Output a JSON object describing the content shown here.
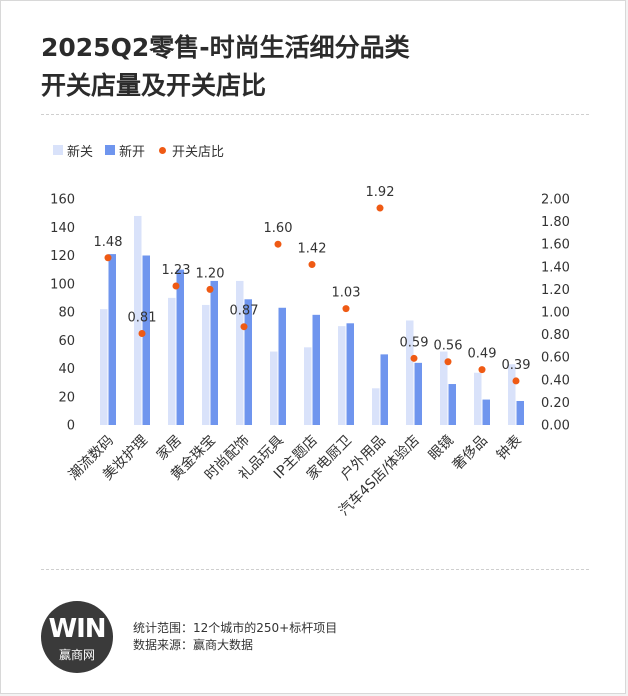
{
  "title": {
    "line1": "2025Q2零售-时尚生活细分品类",
    "line2": "开关店量及开关店比"
  },
  "legend": {
    "closed": "新关",
    "opened": "新开",
    "ratio": "开关店比"
  },
  "colors": {
    "closed": "#d9e2fa",
    "opened": "#6f95ee",
    "ratio": "#ef5a14"
  },
  "footer": {
    "line1": "统计范围：12个城市的250+标杆项目",
    "line2": "数据来源：赢商大数据"
  },
  "logo": {
    "mark": "WIN",
    "text": "赢商网"
  },
  "chart_data": {
    "type": "bar",
    "categories": [
      "潮流数码",
      "美妆护理",
      "家居",
      "黄金珠宝",
      "时尚配饰",
      "礼品玩具",
      "IP主题店",
      "家电厨卫",
      "户外用品",
      "汽车4S店/体验店",
      "眼镜",
      "奢侈品",
      "钟表"
    ],
    "series": [
      {
        "name": "新关",
        "type": "bar",
        "axis": "left",
        "values": [
          82,
          148,
          90,
          85,
          102,
          52,
          55,
          70,
          26,
          74,
          52,
          37,
          43
        ]
      },
      {
        "name": "新开",
        "type": "bar",
        "axis": "left",
        "values": [
          121,
          120,
          110,
          102,
          89,
          83,
          78,
          72,
          50,
          44,
          29,
          18,
          17
        ]
      },
      {
        "name": "开关店比",
        "type": "scatter",
        "axis": "right",
        "values": [
          1.48,
          0.81,
          1.23,
          1.2,
          0.87,
          1.6,
          1.42,
          1.03,
          1.92,
          0.59,
          0.56,
          0.49,
          0.39
        ]
      }
    ],
    "data_labels": [
      "1.48",
      "0.81",
      "1.23",
      "1.20",
      "0.87",
      "1.60",
      "1.42",
      "1.03",
      "1.92",
      "0.59",
      "0.56",
      "0.49",
      "0.39"
    ],
    "ylim_left": [
      0,
      160
    ],
    "ylim_right": [
      0,
      2.0
    ],
    "yticks_left": [
      "0",
      "20",
      "40",
      "60",
      "80",
      "100",
      "120",
      "140",
      "160"
    ],
    "yticks_right": [
      "0.00",
      "0.20",
      "0.40",
      "0.60",
      "0.80",
      "1.00",
      "1.20",
      "1.40",
      "1.60",
      "1.80",
      "2.00"
    ],
    "grid": false,
    "legend_position": "top-left"
  }
}
